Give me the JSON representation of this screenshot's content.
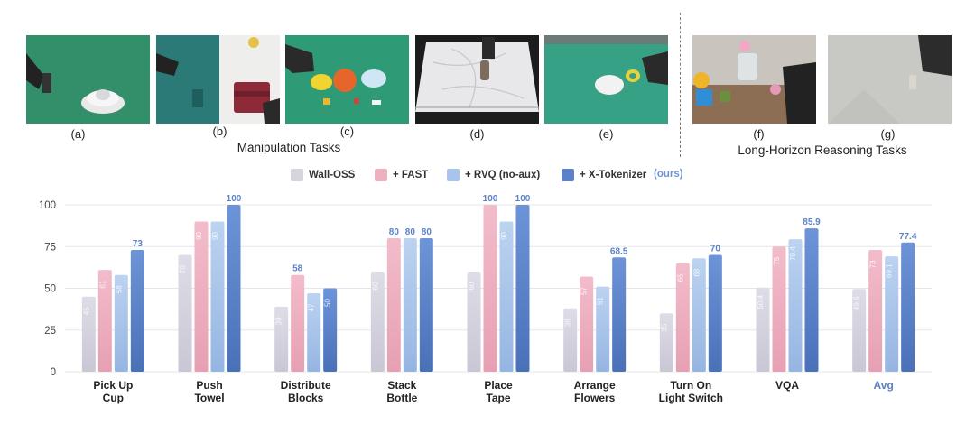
{
  "images": [
    {
      "label": "(a)",
      "scene": "green tabletop with white bowl and robot arm"
    },
    {
      "label": "(b)",
      "scene": "two views: arm on blue cloth and red towel on white table"
    },
    {
      "label": "(c)",
      "scene": "green tabletop with colorful blocks and plates"
    },
    {
      "label": "(d)",
      "scene": "marble table with bottle and arm"
    },
    {
      "label": "(e)",
      "scene": "green tabletop with plate and tape"
    },
    {
      "label": "(f)",
      "scene": "table with cups and flowers"
    },
    {
      "label": "(g)",
      "scene": "grey wall with light switch"
    }
  ],
  "groups": {
    "manipulation": "Manipulation Tasks",
    "long_horizon": "Long-Horizon Reasoning Tasks"
  },
  "legend": {
    "items": [
      "Wall-OSS",
      "+ FAST",
      "+ RVQ (no-aux)",
      "+ X-Tokenizer"
    ],
    "note": "(ours)"
  },
  "colors": {
    "wall_oss": "#d6d5de",
    "fast": "#eeb0bf",
    "rvq": "#a9c4ea",
    "xtok": "#5b82c9",
    "highlight_text": "#5b82c9",
    "grid": "#e6e6ea"
  },
  "chart_data": {
    "type": "bar",
    "categories": [
      "Pick Up\nCup",
      "Push\nTowel",
      "Distribute\nBlocks",
      "Stack\nBottle",
      "Place\nTape",
      "Arrange\nFlowers",
      "Turn On\nLight Switch",
      "VQA",
      "Avg"
    ],
    "series": [
      {
        "name": "Wall-OSS",
        "values": [
          45,
          70,
          39,
          60,
          60,
          38,
          35,
          50.4,
          49.6
        ],
        "labels": [
          "45",
          "70",
          "39",
          "60",
          "60",
          "38",
          "35",
          "50.4",
          "49.6"
        ]
      },
      {
        "name": "+ FAST",
        "values": [
          61,
          90,
          58,
          80,
          100,
          57,
          65,
          75,
          73
        ],
        "labels": [
          "61",
          "90",
          "58",
          "80",
          "100",
          "57",
          "65",
          "75",
          "73"
        ]
      },
      {
        "name": "+ RVQ (no-aux)",
        "values": [
          58,
          90,
          47,
          80,
          90,
          51,
          68,
          79.4,
          69.1
        ],
        "labels": [
          "58",
          "90",
          "47",
          "80",
          "90",
          "51",
          "68",
          "79.4",
          "69.1"
        ]
      },
      {
        "name": "+ X-Tokenizer",
        "values": [
          73,
          100,
          50,
          80,
          100,
          68.5,
          70,
          85.9,
          77.4
        ],
        "labels": [
          "73",
          "100",
          "50",
          "80",
          "100",
          "68.5",
          "70",
          "85.9",
          "77.4"
        ]
      }
    ],
    "highlighted_labels": [
      [
        null,
        null,
        null,
        "73"
      ],
      [
        null,
        null,
        null,
        "100"
      ],
      [
        null,
        "58",
        null,
        null
      ],
      [
        null,
        "80",
        "80",
        "80"
      ],
      [
        null,
        "100",
        null,
        "100"
      ],
      [
        null,
        null,
        null,
        "68.5"
      ],
      [
        null,
        null,
        null,
        "70"
      ],
      [
        null,
        null,
        null,
        "85.9"
      ],
      [
        null,
        null,
        null,
        "77.4"
      ]
    ],
    "yticks": [
      0,
      25,
      50,
      75,
      100
    ],
    "ylim": [
      0,
      100
    ],
    "grid": true,
    "legend_position": "top-center",
    "highlight_category": "Avg"
  }
}
